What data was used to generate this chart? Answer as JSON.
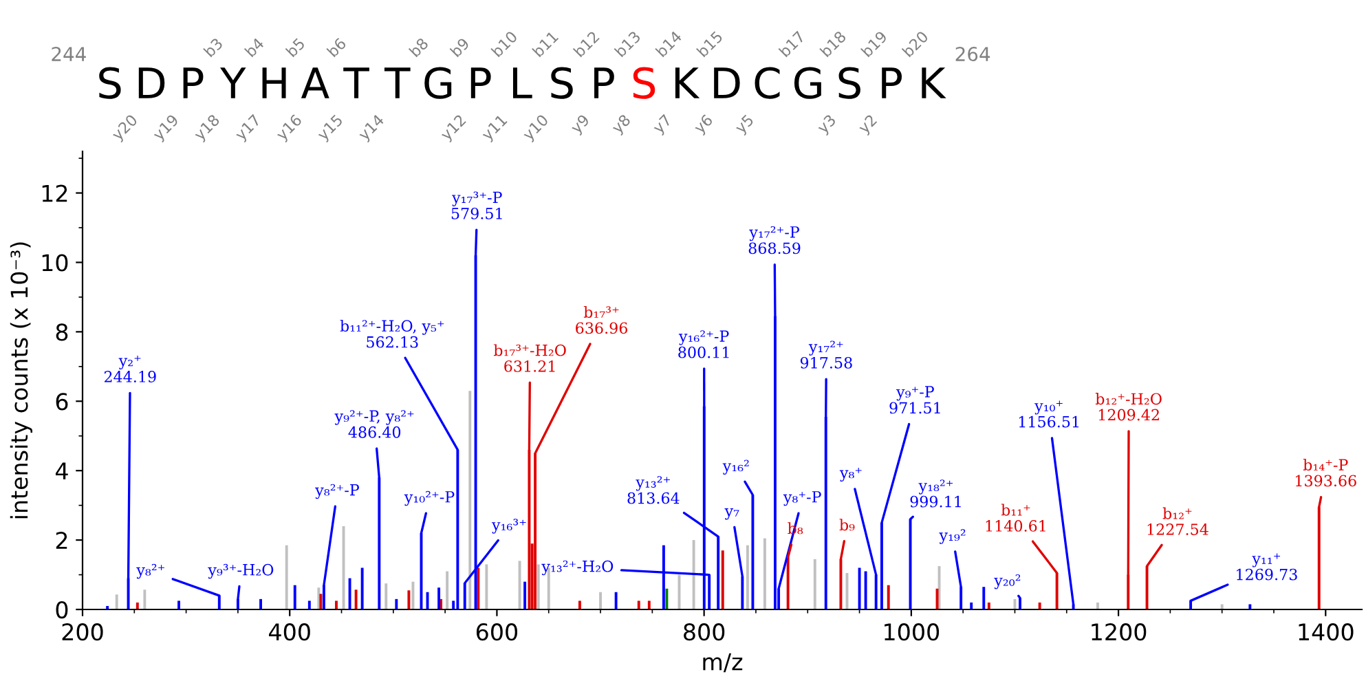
{
  "chart_data": [
    {
      "type": "other",
      "categories": [
        "S",
        "D",
        "P",
        "Y",
        "H",
        "A",
        "T",
        "T",
        "G",
        "P",
        "L",
        "S",
        "P",
        "S",
        "K",
        "D",
        "C",
        "G",
        "S",
        "P",
        "K"
      ],
      "colors": [
        "#000000",
        "#000000",
        "#000000",
        "#000000",
        "#000000",
        "#000000",
        "#000000",
        "#000000",
        "#000000",
        "#000000",
        "#000000",
        "#000000",
        "#000000",
        "#ff0000",
        "#000000",
        "#000000",
        "#000000",
        "#000000",
        "#000000",
        "#000000",
        "#000000"
      ],
      "annotations": [
        "244",
        "264",
        "b3",
        "b4",
        "b5",
        "b6",
        "b8",
        "b9",
        "b10",
        "b11",
        "b12",
        "b13",
        "b14",
        "b15",
        "b17",
        "b18",
        "b19",
        "b20",
        "y20",
        "y19",
        "y18",
        "y17",
        "y16",
        "y15",
        "y14",
        "y12",
        "y11",
        "y10",
        "y9",
        "y8",
        "y7",
        "y6",
        "y5",
        "y3",
        "y2"
      ]
    },
    {
      "type": "bar",
      "xlabel": "m/z",
      "ylabel": "intensity counts (x 10⁻³)",
      "xlim": [
        200,
        1435
      ],
      "ylim": [
        0,
        13.2
      ],
      "xticks": [
        200,
        400,
        600,
        800,
        1000,
        1200,
        1400
      ],
      "yticks": [
        0,
        2,
        4,
        6,
        8,
        10,
        12
      ],
      "series": [
        {
          "color": "#c0c0c0",
          "x": [
            233,
            260,
            397,
            428,
            452,
            493,
            519,
            552,
            574,
            590,
            622,
            640,
            650,
            700,
            776,
            790,
            842,
            858.6,
            907,
            938,
            1027,
            1100,
            1180,
            1300
          ],
          "values": [
            0.43,
            0.57,
            1.85,
            0.63,
            2.4,
            0.75,
            0.8,
            1.1,
            6.3,
            1.3,
            1.4,
            1.3,
            1.2,
            0.5,
            1.0,
            2.0,
            1.85,
            2.05,
            1.45,
            1.05,
            1.25,
            0.3,
            0.2,
            0.15
          ]
        },
        {
          "color": "#e00000",
          "x": [
            253,
            430,
            445,
            464,
            515,
            546,
            582,
            631.21,
            634,
            636.96,
            680,
            737,
            747,
            818,
            881,
            932,
            978,
            1025,
            1075,
            1124,
            1140.61,
            1209.42,
            1227.54,
            1393.66
          ],
          "values": [
            0.2,
            0.45,
            0.25,
            0.57,
            0.55,
            0.3,
            1.2,
            4.6,
            1.9,
            4.5,
            0.25,
            0.25,
            0.25,
            1.7,
            1.5,
            1.45,
            0.7,
            0.6,
            0.2,
            0.2,
            1.05,
            1.0,
            1.25,
            2.95
          ]
        },
        {
          "color": "#0000ff",
          "x": [
            224,
            244.19,
            293,
            332,
            350,
            372,
            405,
            419,
            433,
            458,
            470,
            486.4,
            503,
            527,
            533,
            544,
            558,
            562.13,
            569,
            579.51,
            627,
            715,
            761,
            800.11,
            805,
            813.64,
            837,
            847,
            868.59,
            872,
            917.58,
            950,
            956,
            966,
            971.51,
            999.11,
            1048,
            1058,
            1070,
            1105,
            1156.51,
            1269.73,
            1327
          ],
          "values": [
            0.1,
            0.9,
            0.25,
            0.4,
            0.3,
            0.3,
            0.7,
            0.25,
            0.7,
            0.9,
            1.2,
            3.8,
            0.3,
            2.2,
            0.5,
            0.63,
            0.25,
            4.6,
            0.76,
            10.2,
            0.8,
            0.5,
            1.85,
            5.85,
            1.0,
            2.1,
            0.95,
            3.3,
            8.45,
            0.6,
            5.55,
            1.2,
            1.1,
            1.0,
            2.5,
            2.6,
            0.65,
            0.2,
            0.65,
            0.33,
            0.15,
            0.25,
            0.15
          ]
        },
        {
          "color": "#008000",
          "x": [
            764
          ],
          "values": [
            0.6
          ]
        }
      ],
      "annotations": [
        {
          "text": "y₂⁺\n244.19",
          "x": 244.19,
          "y": 0.9
        },
        {
          "text": "y₈²⁺",
          "x": 332,
          "y": 0.4
        },
        {
          "text": "y₉³⁺-H₂O",
          "x": 350,
          "y": 0.3
        },
        {
          "text": "y₈²⁺-P",
          "x": 433,
          "y": 0.7
        },
        {
          "text": "y₉²⁺-P, y₈²⁺\n486.40",
          "x": 486.4,
          "y": 3.8
        },
        {
          "text": "y₁₀²⁺-P",
          "x": 527,
          "y": 2.2
        },
        {
          "text": "y₁₇³⁺-P\n579.51",
          "x": 579.51,
          "y": 10.2
        },
        {
          "text": "b₁₁²⁺-H₂O, y₅⁺\n562.13",
          "x": 562.13,
          "y": 4.6
        },
        {
          "text": "b₁₇³⁺-H₂O\n631.21",
          "x": 631.21,
          "y": 4.6
        },
        {
          "text": "b₁₇³⁺\n636.96",
          "x": 636.96,
          "y": 4.5
        },
        {
          "text": "y₁₆³⁺",
          "x": 569,
          "y": 0.76
        },
        {
          "text": "y₁₃²⁺-H₂O",
          "x": 805,
          "y": 1.0
        },
        {
          "text": "y₁₃²⁺\n813.64",
          "x": 813.64,
          "y": 2.1
        },
        {
          "text": "y₁₆²⁺-P\n800.11",
          "x": 800.11,
          "y": 5.85
        },
        {
          "text": "y₁₆²",
          "x": 847,
          "y": 3.3
        },
        {
          "text": "y₇",
          "x": 837,
          "y": 0.95
        },
        {
          "text": "y₁₇²⁺-P\n868.59",
          "x": 868.59,
          "y": 8.45
        },
        {
          "text": "y₁₇²⁺\n917.58",
          "x": 917.58,
          "y": 5.55
        },
        {
          "text": "y₈⁺-P",
          "x": 872,
          "y": 0.6
        },
        {
          "text": "b₈",
          "x": 881,
          "y": 1.5
        },
        {
          "text": "b₉",
          "x": 932,
          "y": 1.45
        },
        {
          "text": "y₈⁺",
          "x": 966,
          "y": 1.0
        },
        {
          "text": "y₉⁺-P\n971.51",
          "x": 971.51,
          "y": 2.5
        },
        {
          "text": "y₁₈²⁺\n999.11",
          "x": 999.11,
          "y": 2.6
        },
        {
          "text": "y₁₉²",
          "x": 1048,
          "y": 0.65
        },
        {
          "text": "y₂₀²",
          "x": 1105,
          "y": 0.33
        },
        {
          "text": "b₁₁⁺\n1140.61",
          "x": 1140.61,
          "y": 1.05
        },
        {
          "text": "y₁₀⁺\n1156.51",
          "x": 1156.51,
          "y": 0.15
        },
        {
          "text": "b₁₂⁺-H₂O\n1209.42",
          "x": 1209.42,
          "y": 1.0
        },
        {
          "text": "b₁₂⁺\n1227.54",
          "x": 1227.54,
          "y": 1.25
        },
        {
          "text": "y₁₁⁺\n1269.73",
          "x": 1269.73,
          "y": 0.25
        },
        {
          "text": "b₁₄⁺-P\n1393.66",
          "x": 1393.66,
          "y": 2.95
        }
      ]
    }
  ]
}
